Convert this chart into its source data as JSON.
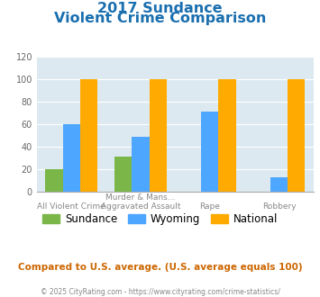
{
  "title_line1": "2017 Sundance",
  "title_line2": "Violent Crime Comparison",
  "x_labels_top": [
    "",
    "Murder & Mans...",
    "",
    ""
  ],
  "x_labels_bot": [
    "All Violent Crime",
    "Aggravated Assault",
    "Rape",
    "Robbery"
  ],
  "sundance": [
    20,
    31,
    0,
    0
  ],
  "wyoming": [
    60,
    49,
    71,
    13
  ],
  "national": [
    100,
    100,
    100,
    100
  ],
  "sundance_color": "#7ab648",
  "wyoming_color": "#4da6ff",
  "national_color": "#ffaa00",
  "title_color": "#1a6faf",
  "ylim": [
    0,
    120
  ],
  "yticks": [
    0,
    20,
    40,
    60,
    80,
    100,
    120
  ],
  "background_color": "#dce9f0",
  "footer_text": "Compared to U.S. average. (U.S. average equals 100)",
  "copyright_text": "© 2025 CityRating.com - https://www.cityrating.com/crime-statistics/",
  "legend_labels": [
    "Sundance",
    "Wyoming",
    "National"
  ],
  "bar_width": 0.25
}
